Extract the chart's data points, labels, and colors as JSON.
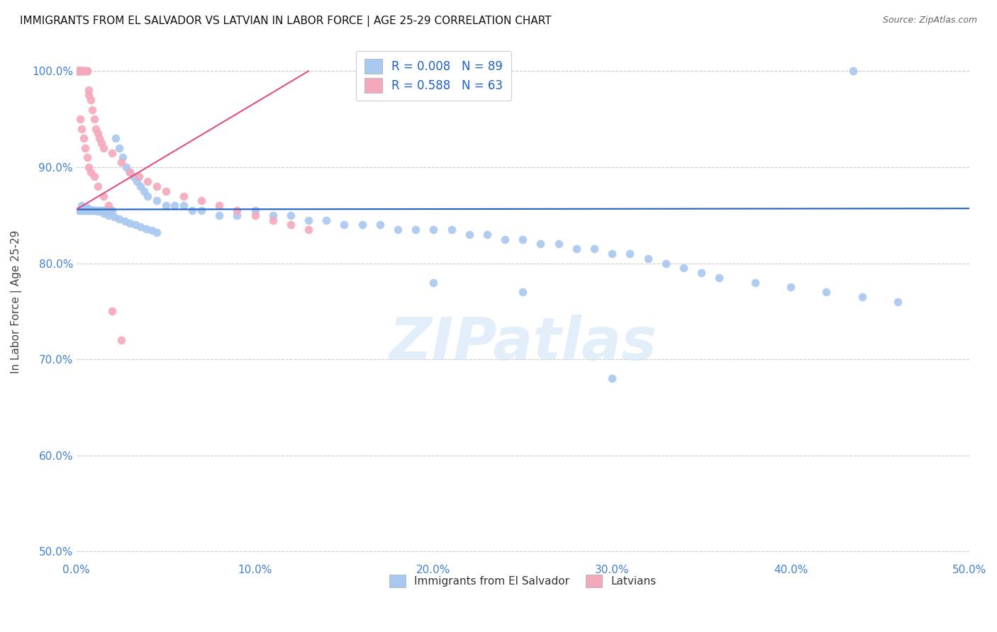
{
  "title": "IMMIGRANTS FROM EL SALVADOR VS LATVIAN IN LABOR FORCE | AGE 25-29 CORRELATION CHART",
  "source": "Source: ZipAtlas.com",
  "ylabel": "In Labor Force | Age 25-29",
  "xlim": [
    0.0,
    0.5
  ],
  "ylim": [
    0.49,
    1.03
  ],
  "xticks": [
    0.0,
    0.1,
    0.2,
    0.3,
    0.4,
    0.5
  ],
  "xticklabels": [
    "0.0%",
    "10.0%",
    "20.0%",
    "30.0%",
    "40.0%",
    "50.0%"
  ],
  "yticks": [
    0.5,
    0.6,
    0.7,
    0.8,
    0.9,
    1.0
  ],
  "yticklabels": [
    "50.0%",
    "60.0%",
    "70.0%",
    "80.0%",
    "90.0%",
    "100.0%"
  ],
  "blue_color": "#A8C8F0",
  "pink_color": "#F4A8BB",
  "blue_line_color": "#2060C0",
  "pink_line_color": "#E05080",
  "tick_color": "#4080D0",
  "R_blue": 0.008,
  "N_blue": 89,
  "R_pink": 0.588,
  "N_pink": 63,
  "legend_label_blue": "Immigrants from El Salvador",
  "legend_label_pink": "Latvians",
  "watermark": "ZIPatlas",
  "blue_x": [
    0.001,
    0.002,
    0.003,
    0.004,
    0.005,
    0.006,
    0.007,
    0.008,
    0.009,
    0.01,
    0.011,
    0.012,
    0.013,
    0.014,
    0.015,
    0.016,
    0.017,
    0.018,
    0.019,
    0.02,
    0.022,
    0.024,
    0.026,
    0.028,
    0.03,
    0.032,
    0.034,
    0.036,
    0.038,
    0.04,
    0.045,
    0.05,
    0.055,
    0.06,
    0.065,
    0.07,
    0.08,
    0.09,
    0.1,
    0.11,
    0.12,
    0.13,
    0.14,
    0.15,
    0.16,
    0.17,
    0.18,
    0.19,
    0.2,
    0.21,
    0.22,
    0.23,
    0.24,
    0.25,
    0.26,
    0.27,
    0.28,
    0.29,
    0.3,
    0.31,
    0.32,
    0.33,
    0.34,
    0.35,
    0.36,
    0.38,
    0.4,
    0.42,
    0.44,
    0.46,
    0.003,
    0.006,
    0.009,
    0.012,
    0.015,
    0.018,
    0.021,
    0.024,
    0.027,
    0.03,
    0.033,
    0.036,
    0.039,
    0.042,
    0.045,
    0.2,
    0.25,
    0.3,
    0.435
  ],
  "blue_y": [
    0.855,
    0.855,
    0.855,
    0.855,
    0.855,
    0.855,
    0.855,
    0.855,
    0.855,
    0.855,
    0.855,
    0.855,
    0.855,
    0.855,
    0.855,
    0.855,
    0.855,
    0.855,
    0.855,
    0.855,
    0.93,
    0.92,
    0.91,
    0.9,
    0.895,
    0.89,
    0.885,
    0.88,
    0.875,
    0.87,
    0.865,
    0.86,
    0.86,
    0.86,
    0.855,
    0.855,
    0.85,
    0.85,
    0.855,
    0.85,
    0.85,
    0.845,
    0.845,
    0.84,
    0.84,
    0.84,
    0.835,
    0.835,
    0.835,
    0.835,
    0.83,
    0.83,
    0.825,
    0.825,
    0.82,
    0.82,
    0.815,
    0.815,
    0.81,
    0.81,
    0.805,
    0.8,
    0.795,
    0.79,
    0.785,
    0.78,
    0.775,
    0.77,
    0.765,
    0.76,
    0.86,
    0.858,
    0.856,
    0.854,
    0.852,
    0.85,
    0.848,
    0.846,
    0.844,
    0.842,
    0.84,
    0.838,
    0.836,
    0.834,
    0.832,
    0.78,
    0.77,
    0.68,
    1.0
  ],
  "pink_x": [
    0.001,
    0.001,
    0.001,
    0.001,
    0.001,
    0.001,
    0.001,
    0.001,
    0.001,
    0.001,
    0.002,
    0.002,
    0.002,
    0.002,
    0.002,
    0.003,
    0.003,
    0.003,
    0.003,
    0.004,
    0.004,
    0.005,
    0.005,
    0.006,
    0.006,
    0.007,
    0.007,
    0.008,
    0.009,
    0.01,
    0.011,
    0.012,
    0.013,
    0.014,
    0.015,
    0.02,
    0.025,
    0.03,
    0.035,
    0.04,
    0.045,
    0.05,
    0.06,
    0.07,
    0.08,
    0.09,
    0.1,
    0.11,
    0.12,
    0.13,
    0.002,
    0.003,
    0.004,
    0.005,
    0.006,
    0.007,
    0.008,
    0.01,
    0.012,
    0.015,
    0.018,
    0.02,
    0.025
  ],
  "pink_y": [
    1.0,
    1.0,
    1.0,
    1.0,
    1.0,
    1.0,
    1.0,
    1.0,
    1.0,
    1.0,
    1.0,
    1.0,
    1.0,
    1.0,
    1.0,
    1.0,
    1.0,
    1.0,
    1.0,
    1.0,
    1.0,
    1.0,
    1.0,
    1.0,
    1.0,
    0.98,
    0.975,
    0.97,
    0.96,
    0.95,
    0.94,
    0.935,
    0.93,
    0.925,
    0.92,
    0.915,
    0.905,
    0.895,
    0.89,
    0.885,
    0.88,
    0.875,
    0.87,
    0.865,
    0.86,
    0.855,
    0.85,
    0.845,
    0.84,
    0.835,
    0.95,
    0.94,
    0.93,
    0.92,
    0.91,
    0.9,
    0.895,
    0.89,
    0.88,
    0.87,
    0.86,
    0.75,
    0.72
  ],
  "blue_line_x": [
    0.0,
    0.5
  ],
  "blue_line_y": [
    0.856,
    0.857
  ],
  "pink_line_x": [
    0.0,
    0.13
  ],
  "pink_line_y": [
    0.856,
    1.0
  ]
}
